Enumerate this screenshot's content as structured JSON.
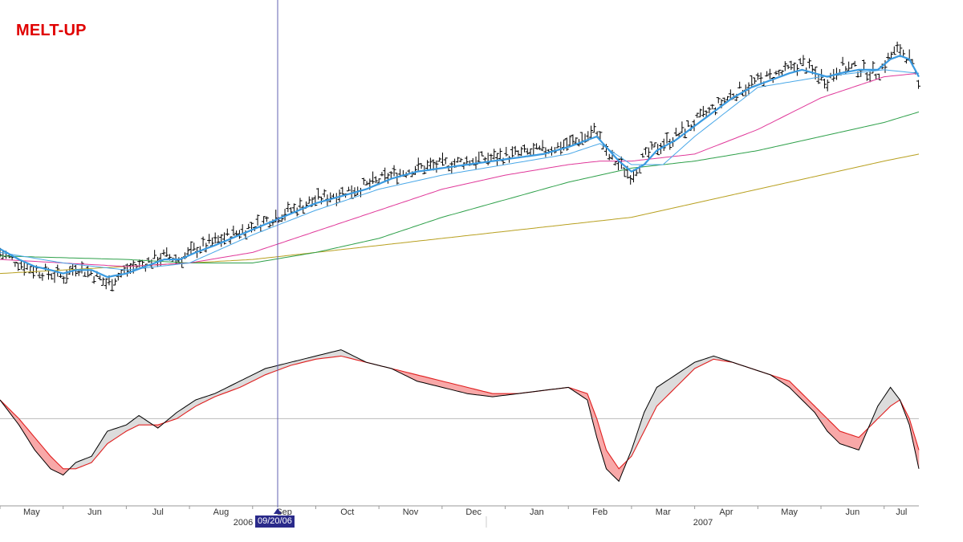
{
  "title": "MELT-UP",
  "cursor_date": "09/20/06",
  "colors": {
    "title": "#e00000",
    "bars": "#000000",
    "ma_fast": "#3a9ae0",
    "ma_mid": "#4aa8e8",
    "ma_50": "#e0399a",
    "ma_100": "#2ea04a",
    "ma_200": "#b8a020",
    "osc_fast": "#000000",
    "osc_slow": "#e02020",
    "fill_up": "#dcdcdc",
    "fill_down": "#f8a8a8",
    "cursor": "#6060b0",
    "zero_line": "#bbbbbb"
  },
  "chart_data": {
    "type": "line",
    "x_axis": {
      "months": [
        "May",
        "Jun",
        "Jul",
        "Aug",
        "Sep",
        "Oct",
        "Nov",
        "Dec",
        "Jan",
        "Feb",
        "Mar",
        "Apr",
        "May",
        "Jun",
        "Jul"
      ],
      "years": [
        "2006",
        "2007"
      ]
    },
    "price_panel": {
      "series": [
        {
          "key": "price",
          "style": "ohlc-bars",
          "x": [
            0,
            0.3,
            0.55,
            0.8,
            1.0,
            1.2,
            1.45,
            1.7,
            2.0,
            2.3,
            2.6,
            2.85,
            3.1,
            3.4,
            3.8,
            4.2,
            4.6,
            5.0,
            5.4,
            5.8,
            6.2,
            6.6,
            7.0,
            7.4,
            7.8,
            8.2,
            8.6,
            9.0,
            9.3,
            9.45,
            9.6,
            9.8,
            10.0,
            10.2,
            10.4,
            10.7,
            11.0,
            11.3,
            11.6,
            11.9,
            12.2,
            12.5,
            12.7,
            12.9,
            13.1,
            13.3,
            13.6,
            13.9,
            14.1,
            14.25,
            14.4,
            14.55
          ],
          "y": [
            15,
            12,
            10,
            9,
            8,
            11,
            9,
            6,
            10,
            12,
            14,
            13,
            16,
            18,
            21,
            24,
            27,
            30,
            32,
            34,
            37,
            39,
            40,
            41,
            42,
            43,
            44,
            46,
            48,
            50,
            43,
            40,
            37,
            42,
            45,
            48,
            52,
            56,
            60,
            63,
            65,
            67,
            69,
            66,
            64,
            68,
            67,
            66,
            71,
            73,
            70,
            62
          ]
        },
        {
          "key": "ma_fast",
          "x": [
            0,
            0.3,
            0.55,
            0.8,
            1.0,
            1.2,
            1.45,
            1.7,
            2.0,
            2.3,
            2.6,
            2.85,
            3.1,
            3.4,
            3.8,
            4.2,
            4.6,
            5.0,
            5.4,
            5.8,
            6.2,
            6.6,
            7.0,
            7.4,
            7.8,
            8.2,
            8.6,
            9.0,
            9.3,
            9.45,
            9.6,
            9.8,
            10.0,
            10.2,
            10.4,
            10.7,
            11.0,
            11.3,
            11.6,
            11.9,
            12.2,
            12.5,
            12.7,
            12.9,
            13.1,
            13.3,
            13.6,
            13.9,
            14.1,
            14.25,
            14.4,
            14.55
          ],
          "y": [
            16,
            13,
            11,
            10,
            9,
            10,
            10,
            8,
            9,
            11,
            13,
            13,
            15,
            17,
            20,
            23,
            26,
            29,
            31,
            33,
            36,
            38,
            39,
            40,
            41,
            42,
            43,
            45,
            47,
            48,
            45,
            41,
            38,
            40,
            44,
            47,
            51,
            55,
            59,
            62,
            64,
            66,
            67,
            66,
            65,
            66,
            67,
            67,
            70,
            71,
            70,
            65
          ]
        },
        {
          "key": "ma_mid",
          "x": [
            0,
            1,
            2,
            3,
            4,
            5,
            6,
            7,
            8,
            9,
            9.5,
            10,
            10.5,
            11,
            12,
            13,
            14,
            14.55
          ],
          "y": [
            15,
            12,
            10,
            12,
            20,
            27,
            33,
            37,
            40,
            43,
            46,
            40,
            40,
            48,
            62,
            65,
            67,
            66
          ]
        },
        {
          "key": "ma_50",
          "x": [
            0,
            1,
            2,
            3,
            4,
            5,
            6,
            7,
            8,
            9,
            9.5,
            10,
            11,
            12,
            13,
            14,
            14.55
          ],
          "y": [
            13,
            12,
            11,
            12,
            15,
            21,
            27,
            33,
            37,
            40,
            41,
            41,
            43,
            50,
            59,
            65,
            66
          ]
        },
        {
          "key": "ma_100",
          "x": [
            0,
            1,
            2,
            3,
            4,
            5,
            6,
            7,
            8,
            9,
            10,
            11,
            12,
            13,
            14,
            14.55
          ],
          "y": [
            14,
            13.5,
            13,
            12,
            12,
            15,
            19,
            25,
            30,
            35,
            39,
            41,
            44,
            48,
            52,
            55
          ]
        },
        {
          "key": "ma_200",
          "x": [
            0,
            1,
            2,
            3,
            4,
            5,
            6,
            7,
            8,
            9,
            10,
            11,
            12,
            13,
            14,
            14.55
          ],
          "y": [
            9,
            10,
            11,
            12,
            13,
            15,
            17,
            19,
            21,
            23,
            25,
            29,
            33,
            37,
            41,
            43
          ]
        }
      ],
      "y_range": [
        0,
        80
      ]
    },
    "oscillator_panel": {
      "series": [
        {
          "key": "osc_fast",
          "x": [
            0,
            0.3,
            0.55,
            0.8,
            1.0,
            1.2,
            1.45,
            1.7,
            2.0,
            2.2,
            2.5,
            2.8,
            3.1,
            3.4,
            3.8,
            4.2,
            4.6,
            5.0,
            5.4,
            5.8,
            6.2,
            6.6,
            7.0,
            7.4,
            7.8,
            8.2,
            8.6,
            9.0,
            9.3,
            9.45,
            9.6,
            9.8,
            10.0,
            10.2,
            10.4,
            10.7,
            11.0,
            11.3,
            11.6,
            11.9,
            12.2,
            12.5,
            12.7,
            12.9,
            13.1,
            13.3,
            13.6,
            13.9,
            14.1,
            14.25,
            14.4,
            14.55
          ],
          "y": [
            3,
            -1,
            -5,
            -8,
            -9,
            -7,
            -6,
            -2,
            -1,
            0.5,
            -1.5,
            1,
            3,
            4,
            6,
            8,
            9,
            10,
            11,
            9,
            8,
            6,
            5,
            4,
            3.5,
            4,
            4.5,
            5,
            3,
            -3,
            -8,
            -10,
            -5,
            1,
            5,
            7,
            9,
            10,
            9,
            8,
            7,
            5,
            3,
            1,
            -2,
            -4,
            -5,
            2,
            5,
            3,
            -1,
            -8
          ]
        },
        {
          "key": "osc_slow",
          "x": [
            0,
            0.3,
            0.55,
            0.8,
            1.0,
            1.2,
            1.45,
            1.7,
            2.0,
            2.2,
            2.5,
            2.8,
            3.1,
            3.4,
            3.8,
            4.2,
            4.6,
            5.0,
            5.4,
            5.8,
            6.2,
            6.6,
            7.0,
            7.4,
            7.8,
            8.2,
            8.6,
            9.0,
            9.3,
            9.45,
            9.6,
            9.8,
            10.0,
            10.2,
            10.4,
            10.7,
            11.0,
            11.3,
            11.6,
            11.9,
            12.2,
            12.5,
            12.7,
            12.9,
            13.1,
            13.3,
            13.6,
            13.9,
            14.1,
            14.25,
            14.4,
            14.55
          ],
          "y": [
            3,
            0,
            -3,
            -6,
            -8,
            -8,
            -7,
            -4,
            -2,
            -1,
            -1,
            0,
            2,
            3.5,
            5,
            7,
            8.5,
            9.5,
            10,
            9,
            8,
            7,
            6,
            5,
            4,
            4,
            4.5,
            5,
            4,
            0,
            -5,
            -8,
            -6,
            -2,
            2,
            5,
            8,
            9.5,
            9,
            8,
            7,
            6,
            4,
            2,
            0,
            -2,
            -3,
            0,
            2,
            3,
            0,
            -5
          ]
        }
      ],
      "zero": 0,
      "y_range": [
        -12,
        13
      ]
    }
  }
}
